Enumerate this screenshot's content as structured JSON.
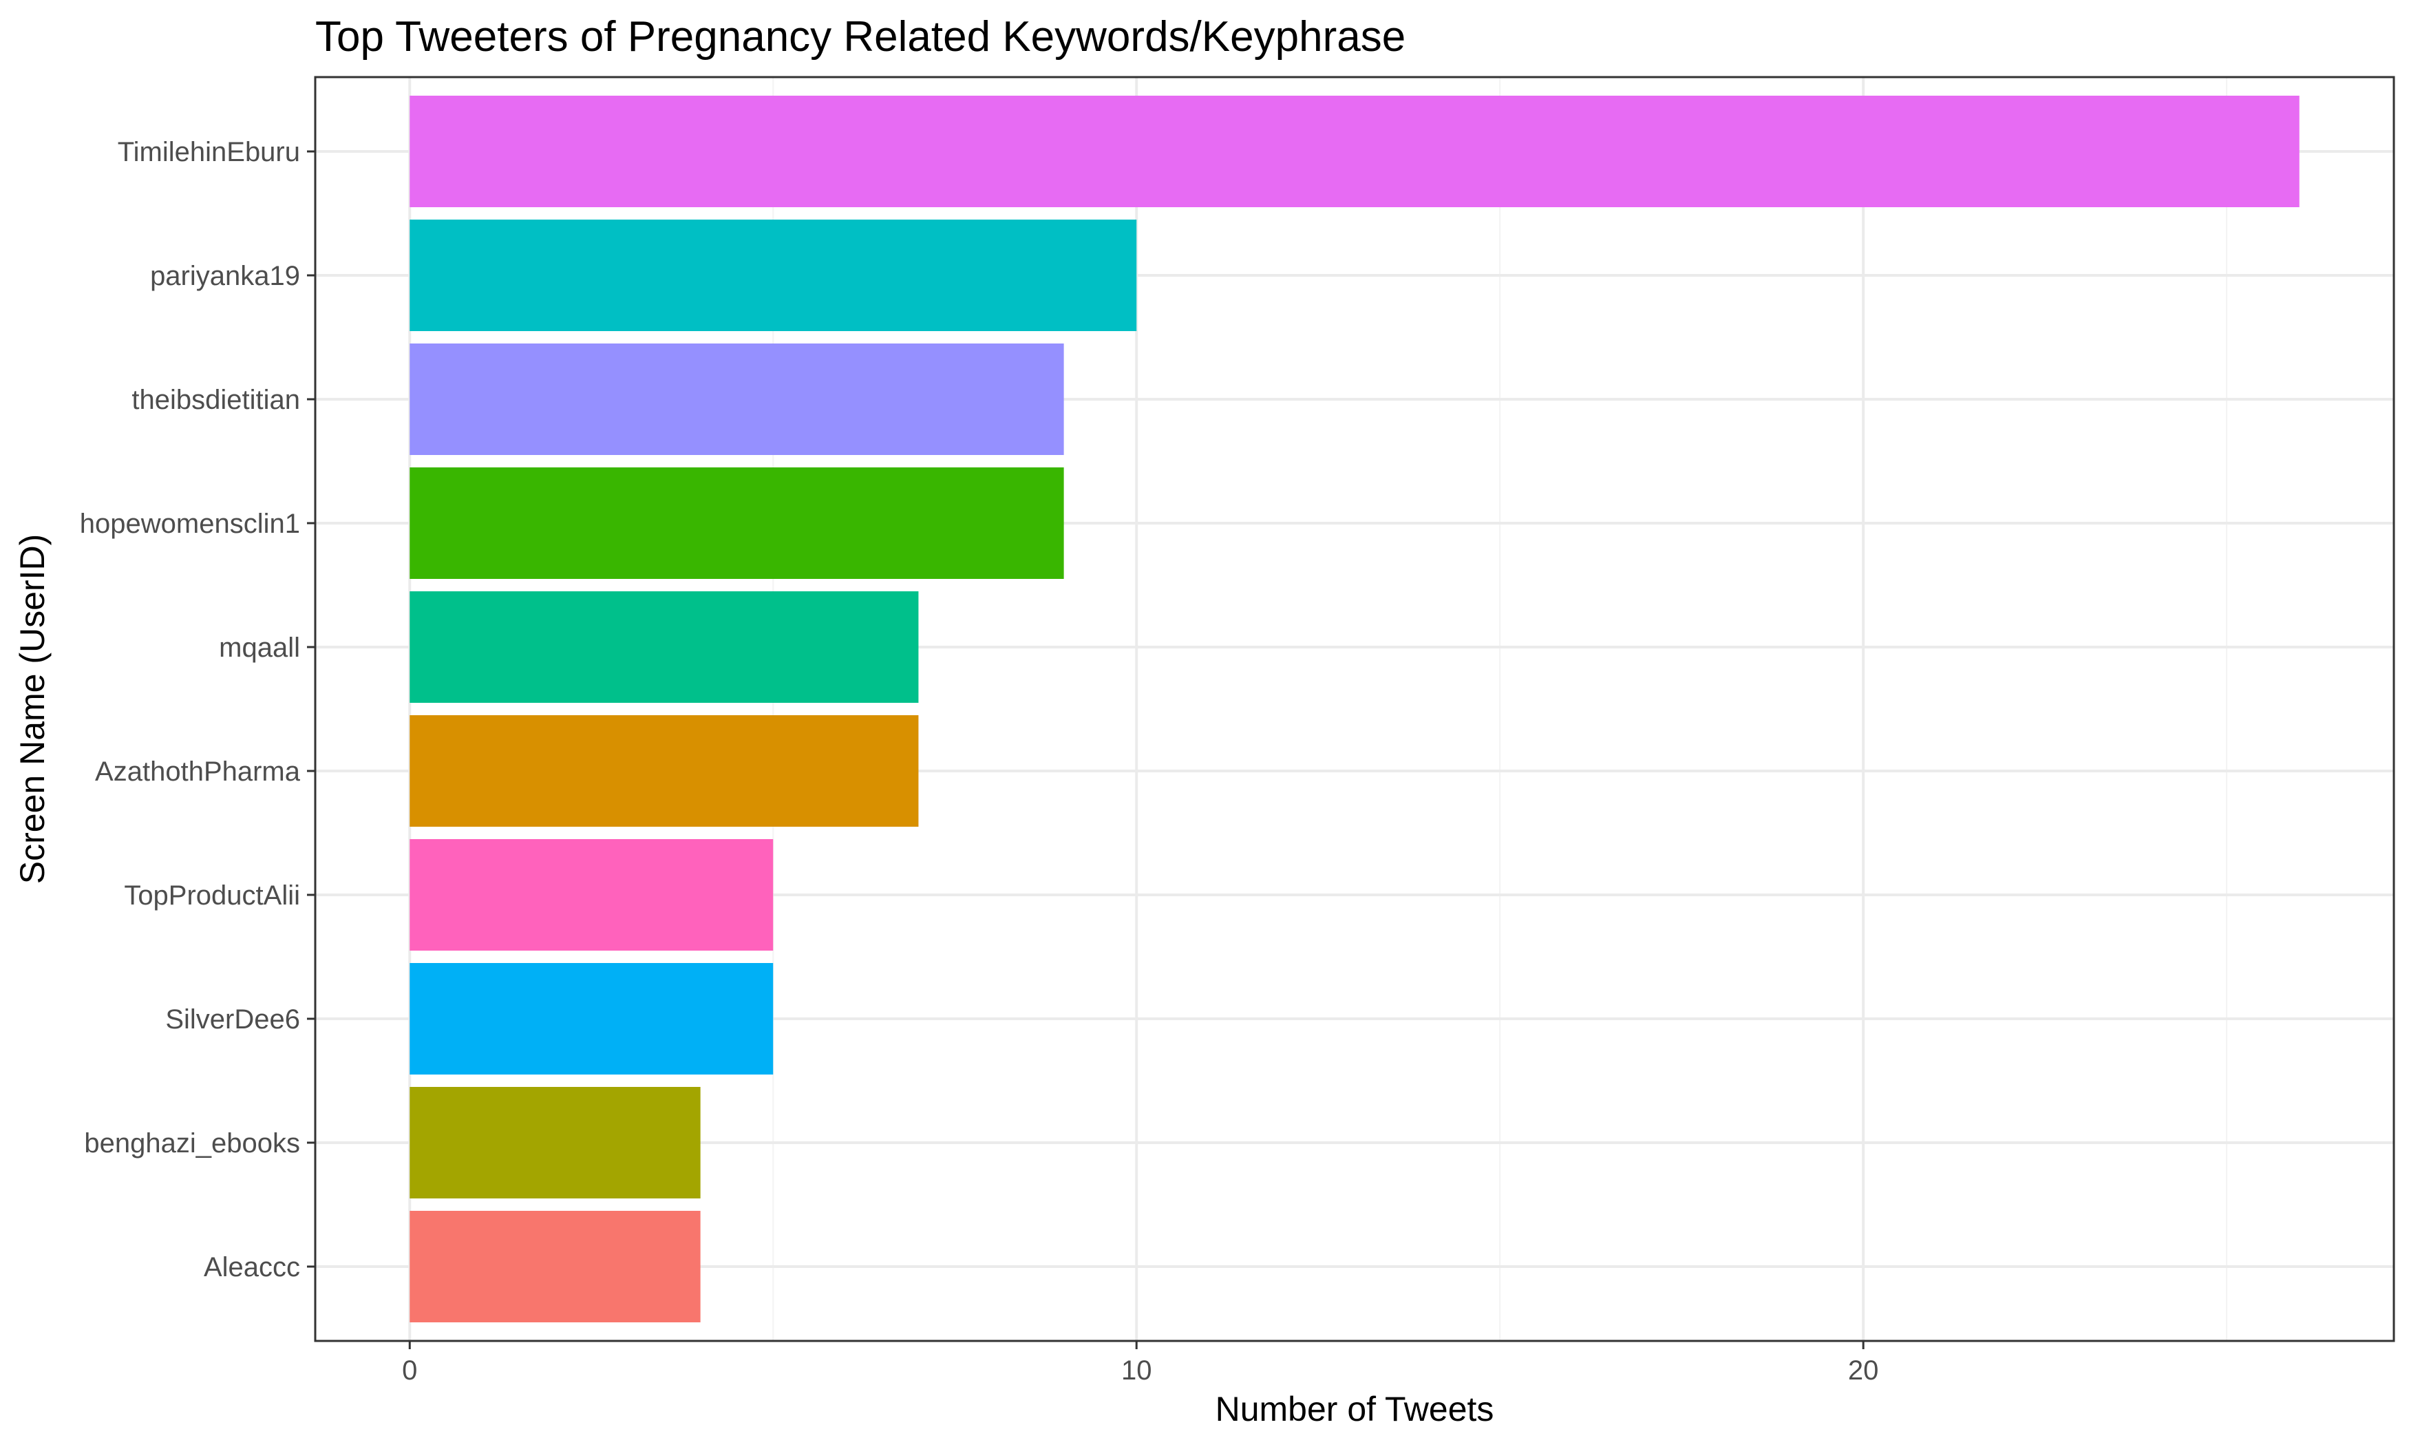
{
  "chart_data": {
    "type": "bar",
    "orientation": "horizontal",
    "title": "Top Tweeters of Pregnancy Related Keywords/Keyphrase",
    "xlabel": "Number of Tweets",
    "ylabel": "Screen Name (UserID)",
    "xlim": [
      -1.3,
      27.3
    ],
    "x_ticks": [
      0,
      10,
      20
    ],
    "x_tick_labels": [
      "0",
      "10",
      "20"
    ],
    "grid": true,
    "legend": "none",
    "categories": [
      "TimilehinEburu",
      "pariyanka19",
      "theibsdietitian",
      "hopewomensclin1",
      "mqaall",
      "AzathothPharma",
      "TopProductAlii",
      "SilverDee6",
      "benghazi_ebooks",
      "Aleaccc"
    ],
    "values": [
      26,
      10,
      9,
      9,
      7,
      7,
      5,
      5,
      4,
      4
    ],
    "colors": [
      "#E76BF3",
      "#00BFC4",
      "#9590FF",
      "#39B600",
      "#00C08B",
      "#D89000",
      "#FF62BC",
      "#00B0F6",
      "#A3A500",
      "#F8766D"
    ]
  }
}
